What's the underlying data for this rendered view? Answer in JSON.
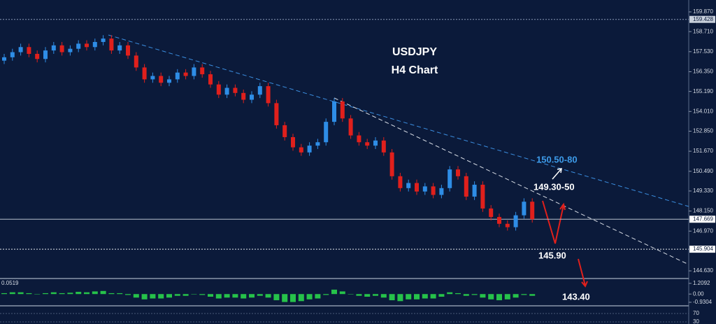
{
  "chart_data": {
    "type": "candlestick",
    "title": "USDJPY",
    "subtitle": "H4 Chart",
    "open": [
      157.0,
      157.2,
      157.5,
      157.8,
      157.4,
      157.1,
      157.6,
      157.9,
      157.5,
      157.7,
      158.0,
      157.8,
      158.1,
      158.3,
      157.6,
      157.9,
      157.3,
      156.6,
      155.9,
      156.1,
      155.7,
      155.9,
      156.3,
      156.1,
      156.6,
      156.2,
      155.6,
      155.0,
      155.4,
      155.1,
      154.7,
      155.0,
      155.5,
      154.5,
      153.2,
      152.5,
      151.9,
      151.6,
      152.0,
      152.2,
      153.4,
      154.6,
      153.6,
      152.6,
      152.2,
      152.0,
      152.3,
      151.6,
      150.2,
      149.5,
      149.8,
      149.3,
      149.6,
      149.1,
      149.5,
      150.6,
      150.2,
      149.0,
      149.7,
      148.3,
      147.8,
      147.4,
      147.2,
      147.9,
      148.7
    ],
    "high": [
      157.4,
      157.7,
      158.0,
      158.0,
      157.6,
      157.8,
      158.1,
      158.1,
      157.9,
      158.2,
      158.2,
      158.3,
      158.5,
      158.5,
      158.1,
      158.1,
      157.5,
      156.8,
      156.3,
      156.3,
      156.1,
      156.5,
      156.5,
      156.8,
      156.8,
      156.4,
      155.8,
      155.6,
      155.6,
      155.3,
      155.2,
      155.7,
      155.7,
      154.7,
      153.4,
      152.7,
      152.1,
      152.2,
      152.4,
      153.6,
      154.8,
      154.8,
      153.8,
      152.8,
      152.4,
      152.5,
      152.5,
      151.8,
      150.4,
      150.0,
      150.0,
      149.8,
      149.8,
      149.7,
      150.8,
      150.8,
      150.4,
      149.9,
      149.9,
      148.5,
      148.0,
      147.6,
      148.1,
      148.9,
      148.9
    ],
    "low": [
      156.8,
      157.0,
      157.3,
      157.2,
      156.9,
      156.9,
      157.4,
      157.3,
      157.3,
      157.5,
      157.6,
      157.6,
      157.9,
      157.4,
      157.4,
      157.1,
      156.4,
      155.7,
      155.7,
      155.5,
      155.5,
      155.7,
      155.9,
      155.9,
      156.0,
      155.4,
      154.8,
      154.8,
      154.9,
      154.5,
      154.5,
      154.8,
      154.3,
      153.0,
      152.3,
      151.7,
      151.4,
      151.4,
      151.8,
      152.0,
      153.2,
      153.4,
      152.4,
      152.0,
      151.8,
      151.8,
      151.4,
      150.0,
      149.3,
      149.3,
      149.1,
      149.1,
      148.9,
      148.9,
      149.3,
      150.0,
      148.8,
      148.8,
      148.1,
      147.6,
      147.2,
      147.0,
      147.0,
      147.7,
      147.47
    ],
    "close": [
      157.2,
      157.5,
      157.8,
      157.4,
      157.1,
      157.6,
      157.9,
      157.5,
      157.7,
      158.0,
      157.8,
      158.1,
      158.3,
      157.6,
      157.9,
      157.3,
      156.6,
      155.9,
      156.1,
      155.7,
      155.9,
      156.3,
      156.1,
      156.6,
      156.2,
      155.6,
      155.0,
      155.4,
      155.1,
      154.7,
      155.0,
      155.5,
      154.5,
      153.2,
      152.5,
      151.9,
      151.6,
      152.0,
      152.2,
      153.4,
      154.6,
      153.6,
      152.6,
      152.2,
      152.0,
      152.3,
      151.6,
      150.2,
      149.5,
      149.8,
      149.3,
      149.6,
      149.1,
      149.5,
      150.6,
      150.2,
      149.0,
      149.7,
      148.3,
      147.8,
      147.4,
      147.2,
      147.9,
      148.7,
      147.67
    ],
    "up_color": "#2e8de6",
    "down_color": "#e0201c",
    "ylim": [
      144.18,
      160.57
    ],
    "yticks": [
      {
        "value": 159.87,
        "label": "159.870"
      },
      {
        "value": 158.71,
        "label": "158.710"
      },
      {
        "value": 157.53,
        "label": "157.530"
      },
      {
        "value": 156.35,
        "label": "156.350"
      },
      {
        "value": 155.19,
        "label": "155.190"
      },
      {
        "value": 154.01,
        "label": "154.010"
      },
      {
        "value": 152.85,
        "label": "152.850"
      },
      {
        "value": 151.67,
        "label": "151.670"
      },
      {
        "value": 150.49,
        "label": "150.490"
      },
      {
        "value": 149.33,
        "label": "149.330"
      },
      {
        "value": 148.15,
        "label": "148.150"
      },
      {
        "value": 146.97,
        "label": "146.970"
      },
      {
        "value": 144.63,
        "label": "144.630"
      }
    ],
    "levels": [
      159.428,
      147.669,
      145.904
    ],
    "annotations": [
      "150.50-80",
      "149.30-50",
      "145.90",
      "143.40"
    ],
    "macd": {
      "label": "0.0519",
      "color": "#26c24a",
      "ylim": [
        -1.33,
        1.68
      ],
      "yticks": [
        1.2092,
        {
          "value": 0,
          "label": "0.00"
        },
        -0.9304
      ],
      "values": [
        0.1,
        0.2,
        0.2,
        0.1,
        0,
        0.1,
        0.2,
        0.1,
        0.15,
        0.25,
        0.2,
        0.3,
        0.35,
        0.1,
        0.1,
        -0.1,
        -0.4,
        -0.6,
        -0.5,
        -0.5,
        -0.4,
        -0.2,
        -0.2,
        0,
        -0.1,
        -0.3,
        -0.5,
        -0.4,
        -0.4,
        -0.5,
        -0.4,
        -0.2,
        -0.4,
        -0.7,
        -0.9,
        -0.9,
        -0.8,
        -0.6,
        -0.5,
        -0.1,
        0.5,
        0.3,
        0,
        -0.2,
        -0.3,
        -0.2,
        -0.4,
        -0.7,
        -0.8,
        -0.6,
        -0.6,
        -0.5,
        -0.5,
        -0.3,
        0.2,
        0.1,
        -0.2,
        -0.1,
        -0.4,
        -0.6,
        -0.7,
        -0.6,
        -0.4,
        -0.1,
        -0.2
      ]
    },
    "rsi": {
      "ylim": [
        20,
        96.7
      ],
      "yticks": [
        70,
        30
      ]
    }
  }
}
